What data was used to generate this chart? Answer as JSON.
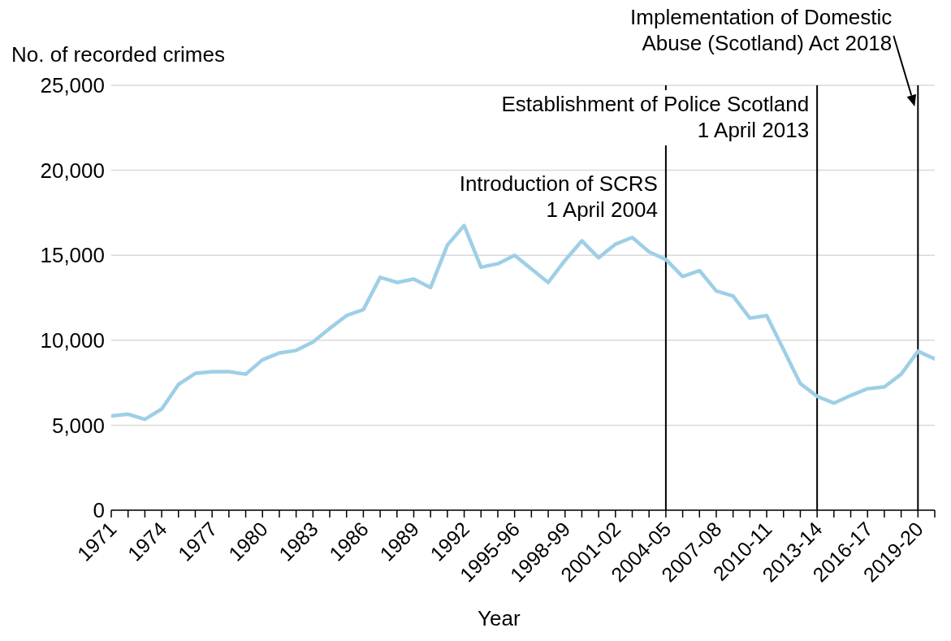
{
  "chart_data": {
    "type": "line",
    "xlabel": "Year",
    "ylabel": "No. of recorded crimes",
    "categories": [
      "1971",
      null,
      null,
      "1974",
      null,
      null,
      "1977",
      null,
      null,
      "1980",
      null,
      null,
      "1983",
      null,
      null,
      "1986",
      null,
      null,
      "1989",
      null,
      null,
      "1992",
      null,
      null,
      "1995-96",
      null,
      null,
      "1998-99",
      null,
      null,
      "2001-02",
      null,
      null,
      "2004-05",
      null,
      null,
      "2007-08",
      null,
      null,
      "2010-11",
      null,
      null,
      "2013-14",
      null,
      null,
      "2016-17",
      null,
      null,
      "2019-20",
      null
    ],
    "series": [
      {
        "color": "#9ecfe6",
        "values": [
          5550,
          5650,
          5350,
          5950,
          7400,
          8050,
          8150,
          8150,
          8000,
          8850,
          9250,
          9400,
          9900,
          10700,
          11450,
          11800,
          13700,
          13400,
          13600,
          13100,
          15600,
          16750,
          14300,
          14500,
          15000,
          14200,
          13400,
          14700,
          15850,
          14850,
          15650,
          16050,
          15200,
          14750,
          13750,
          14100,
          12900,
          12600,
          11300,
          11450,
          9450,
          7450,
          6700,
          6300,
          6750,
          7150,
          7250,
          8000,
          9350,
          8900
        ]
      }
    ],
    "ylim": [
      0,
      25000
    ],
    "yticks": [
      {
        "value": 0,
        "label": "0"
      },
      {
        "value": 5000,
        "label": "5,000"
      },
      {
        "value": 10000,
        "label": "10,000"
      },
      {
        "value": 15000,
        "label": "15,000"
      },
      {
        "value": 20000,
        "label": "20,000"
      },
      {
        "value": 25000,
        "label": "25,000"
      }
    ],
    "grid": "y",
    "legend": false,
    "marker": "none",
    "line_style": "solid",
    "ref_lines": [
      {
        "axis": "x",
        "value": "2004-05",
        "label": "Introduction of SCRS\n1 April 2004",
        "color": "#000000"
      },
      {
        "axis": "x",
        "value": "2013-14",
        "label": "Establishment of Police Scotland\n1 April 2013",
        "color": "#000000"
      },
      {
        "axis": "x",
        "value": "2019-20",
        "label": "Implementation of Domestic\nAbuse (Scotland) Act 2018",
        "color": "#000000"
      }
    ]
  }
}
